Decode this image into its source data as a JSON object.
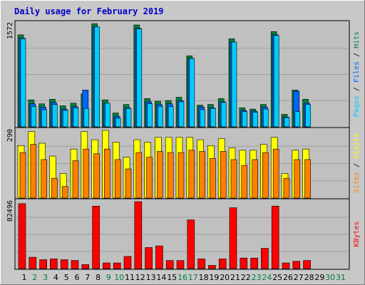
{
  "title": "Daily usage for February 2019",
  "colors": {
    "pages": "#00ccff",
    "files": "#0066ff",
    "hits": "#008040",
    "visits": "#ffff00",
    "sites": "#ff8000",
    "kbytes": "#ff0000",
    "weekday_label": "#000000",
    "weekend_label": "#008040",
    "title": "#0000cc",
    "background": "#c8c8c8",
    "panel": "#c0c0c0"
  },
  "chart_data": [
    {
      "type": "bar",
      "panel": "hits-files-pages",
      "ymax_label": "1572",
      "ymax": 1572,
      "legend": [
        {
          "text": "Pages",
          "color_key": "pages"
        },
        {
          "text": "Files",
          "color_key": "files"
        },
        {
          "text": "Hits",
          "color_key": "hits"
        }
      ],
      "categories": [
        "1",
        "2",
        "3",
        "4",
        "5",
        "6",
        "7",
        "8",
        "9",
        "10",
        "11",
        "12",
        "13",
        "14",
        "15",
        "16",
        "17",
        "18",
        "19",
        "20",
        "21",
        "22",
        "23",
        "24",
        "25",
        "26",
        "27",
        "28",
        "29",
        "30",
        "31"
      ],
      "series": [
        {
          "name": "Hits",
          "values": [
            1400,
            410,
            350,
            420,
            320,
            360,
            500,
            1570,
            410,
            210,
            340,
            1550,
            430,
            390,
            400,
            450,
            1080,
            330,
            340,
            430,
            1340,
            290,
            270,
            340,
            1450,
            190,
            560,
            420,
            0,
            0,
            0
          ]
        },
        {
          "name": "Files",
          "values": [
            1350,
            350,
            300,
            370,
            270,
            310,
            560,
            1520,
            360,
            160,
            290,
            1500,
            380,
            340,
            350,
            400,
            1040,
            300,
            290,
            380,
            1290,
            250,
            240,
            300,
            1400,
            150,
            540,
            360,
            0,
            0,
            0
          ]
        },
        {
          "name": "Pages",
          "values": [
            1340,
            310,
            260,
            340,
            250,
            290,
            280,
            1520,
            360,
            130,
            280,
            1490,
            350,
            310,
            310,
            380,
            1040,
            260,
            280,
            370,
            1290,
            230,
            220,
            270,
            1390,
            140,
            230,
            340,
            0,
            0,
            0
          ]
        }
      ]
    },
    {
      "type": "bar",
      "panel": "visits-sites",
      "ymax_label": "290",
      "ymax": 290,
      "legend": [
        {
          "text": "Sites",
          "color_key": "sites"
        },
        {
          "text": "Visits",
          "color_key": "visits"
        }
      ],
      "categories": [
        "1",
        "2",
        "3",
        "4",
        "5",
        "6",
        "7",
        "8",
        "9",
        "10",
        "11",
        "12",
        "13",
        "14",
        "15",
        "16",
        "17",
        "18",
        "19",
        "20",
        "21",
        "22",
        "23",
        "24",
        "25",
        "26",
        "27",
        "28",
        "29",
        "30",
        "31"
      ],
      "series": [
        {
          "name": "Visits",
          "values": [
            225,
            285,
            235,
            180,
            105,
            210,
            285,
            250,
            290,
            240,
            175,
            250,
            240,
            260,
            260,
            260,
            260,
            250,
            225,
            255,
            215,
            205,
            205,
            230,
            260,
            105,
            205,
            210,
            0,
            0,
            0
          ]
        },
        {
          "name": "Sites",
          "values": [
            195,
            230,
            165,
            85,
            50,
            160,
            210,
            190,
            210,
            165,
            125,
            195,
            175,
            200,
            195,
            195,
            205,
            200,
            170,
            200,
            165,
            140,
            165,
            195,
            210,
            85,
            165,
            165,
            0,
            0,
            0
          ]
        }
      ]
    },
    {
      "type": "bar",
      "panel": "kbytes",
      "ymax_label": "82496",
      "ymax": 82496,
      "legend": [
        {
          "text": "KBytes",
          "color_key": "kbytes"
        }
      ],
      "categories": [
        "1",
        "2",
        "3",
        "4",
        "5",
        "6",
        "7",
        "8",
        "9",
        "10",
        "11",
        "12",
        "13",
        "14",
        "15",
        "16",
        "17",
        "18",
        "19",
        "20",
        "21",
        "22",
        "23",
        "24",
        "25",
        "26",
        "27",
        "28",
        "29",
        "30",
        "31"
      ],
      "series": [
        {
          "name": "KBytes",
          "values": [
            80000,
            14000,
            11000,
            12000,
            11000,
            10000,
            5000,
            77000,
            7000,
            7000,
            15000,
            82496,
            26000,
            28000,
            10000,
            10000,
            60000,
            12000,
            4000,
            12000,
            75000,
            13000,
            13000,
            25000,
            77000,
            7000,
            9000,
            10000,
            0,
            0,
            0
          ]
        }
      ]
    }
  ],
  "x_axis": {
    "days": [
      "1",
      "2",
      "3",
      "4",
      "5",
      "6",
      "7",
      "8",
      "9",
      "10",
      "11",
      "12",
      "13",
      "14",
      "15",
      "16",
      "17",
      "18",
      "19",
      "20",
      "21",
      "22",
      "23",
      "24",
      "25",
      "26",
      "27",
      "28",
      "29",
      "30",
      "31"
    ],
    "weekend": [
      false,
      true,
      true,
      false,
      false,
      false,
      false,
      false,
      true,
      true,
      false,
      false,
      false,
      false,
      false,
      true,
      true,
      false,
      false,
      false,
      false,
      false,
      true,
      true,
      false,
      false,
      false,
      false,
      false,
      true,
      true
    ]
  }
}
